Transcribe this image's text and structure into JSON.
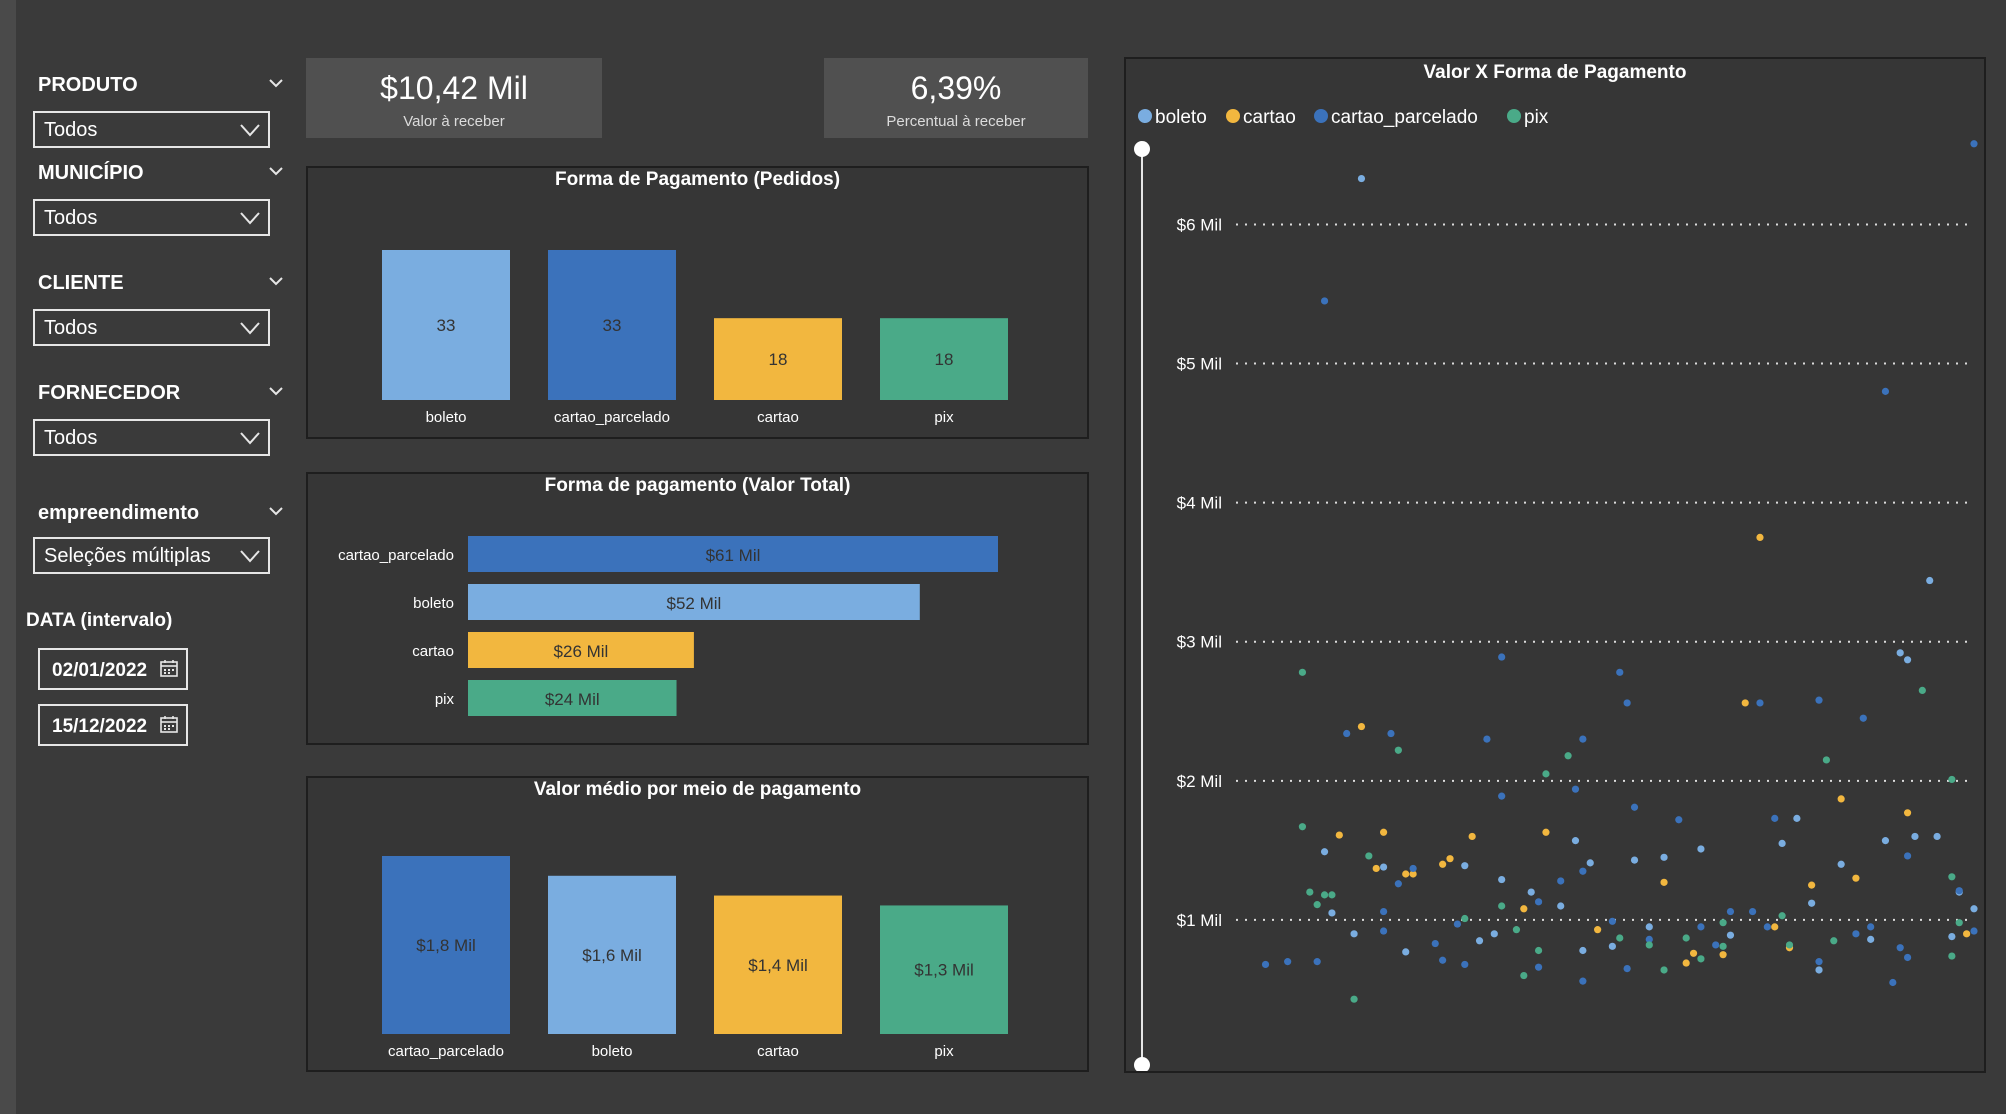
{
  "slicers": [
    {
      "title": "PRODUTO",
      "value": "Todos"
    },
    {
      "title": "MUNICÍPIO",
      "value": "Todos"
    },
    {
      "title": "CLIENTE",
      "value": "Todos"
    },
    {
      "title": "FORNECEDOR",
      "value": "Todos"
    },
    {
      "title": "empreendimento",
      "value": "Seleções múltiplas"
    }
  ],
  "date_filter": {
    "label": "DATA (intervalo)",
    "start": "02/01/2022",
    "end": "15/12/2022"
  },
  "kpis": [
    {
      "value": "$10,42 Mil",
      "label": "Valor à receber"
    },
    {
      "value": "6,39%",
      "label": "Percentual à receber"
    }
  ],
  "colors": {
    "boleto": "#7aade0",
    "cartao_parcelado": "#3b72bb",
    "cartao": "#f2b73f",
    "pix": "#4aaa88"
  },
  "charts": {
    "orders": {
      "title": "Forma de Pagamento (Pedidos)",
      "chart_data": {
        "type": "bar",
        "categories": [
          "boleto",
          "cartao_parcelado",
          "cartao",
          "pix"
        ],
        "values": [
          33,
          33,
          18,
          18
        ],
        "labels": [
          "33",
          "33",
          "18",
          "18"
        ],
        "colors": [
          "#7aade0",
          "#3b72bb",
          "#f2b73f",
          "#4aaa88"
        ]
      }
    },
    "total": {
      "title": "Forma de pagamento (Valor Total)",
      "chart_data": {
        "type": "bar",
        "orientation": "horizontal",
        "categories": [
          "cartao_parcelado",
          "boleto",
          "cartao",
          "pix"
        ],
        "values": [
          61,
          52,
          26,
          24
        ],
        "labels": [
          "$61 Mil",
          "$52 Mil",
          "$26 Mil",
          "$24 Mil"
        ],
        "colors": [
          "#3b72bb",
          "#7aade0",
          "#f2b73f",
          "#4aaa88"
        ]
      }
    },
    "average": {
      "title": "Valor médio por meio de pagamento",
      "chart_data": {
        "type": "bar",
        "categories": [
          "cartao_parcelado",
          "boleto",
          "cartao",
          "pix"
        ],
        "values": [
          1.8,
          1.6,
          1.4,
          1.3
        ],
        "labels": [
          "$1,8 Mil",
          "$1,6 Mil",
          "$1,4 Mil",
          "$1,3 Mil"
        ],
        "colors": [
          "#3b72bb",
          "#7aade0",
          "#f2b73f",
          "#4aaa88"
        ]
      }
    },
    "scatter": {
      "title": "Valor X Forma de Pagamento",
      "chart_data": {
        "type": "scatter",
        "legend": [
          "boleto",
          "cartao",
          "cartao_parcelado",
          "pix"
        ],
        "y_ticks": [
          "$1 Mil",
          "$2 Mil",
          "$3 Mil",
          "$4 Mil",
          "$5 Mil",
          "$6 Mil"
        ],
        "y_tick_values": [
          1000,
          2000,
          3000,
          4000,
          5000,
          6000
        ],
        "ylim": [
          0,
          6600
        ],
        "xlim": [
          0,
          100
        ],
        "grid": true,
        "series": [
          {
            "name": "boleto",
            "points": [
              [
                17,
                6330
              ],
              [
                46,
                1570
              ],
              [
                48,
                1410
              ],
              [
                58,
                1450
              ],
              [
                63,
                1510
              ],
              [
                31,
                1390
              ],
              [
                36,
                1290
              ],
              [
                44,
                1100
              ],
              [
                56,
                950
              ],
              [
                35,
                900
              ],
              [
                20,
                1380
              ],
              [
                74,
                1550
              ],
              [
                76,
                1730
              ],
              [
                79,
                640
              ],
              [
                82,
                1400
              ],
              [
                88,
                1570
              ],
              [
                90,
                2920
              ],
              [
                91,
                2870
              ],
              [
                94,
                3440
              ],
              [
                98,
                1200
              ],
              [
                100,
                1080
              ],
              [
                97,
                880
              ],
              [
                86,
                860
              ],
              [
                92,
                1600
              ],
              [
                95,
                1600
              ],
              [
                12,
                1490
              ],
              [
                13,
                1050
              ],
              [
                16,
                900
              ],
              [
                23,
                770
              ],
              [
                40,
                1200
              ],
              [
                54,
                1430
              ],
              [
                67,
                890
              ],
              [
                78,
                1120
              ],
              [
                47,
                780
              ],
              [
                51,
                810
              ],
              [
                33,
                850
              ]
            ]
          },
          {
            "name": "cartao",
            "points": [
              [
                71,
                3750
              ],
              [
                69,
                2560
              ],
              [
                82,
                1870
              ],
              [
                91,
                1770
              ],
              [
                28,
                1400
              ],
              [
                29,
                1440
              ],
              [
                32,
                1600
              ],
              [
                23,
                1330
              ],
              [
                19,
                1370
              ],
              [
                24,
                1330
              ],
              [
                39,
                1080
              ],
              [
                42,
                1630
              ],
              [
                58,
                1270
              ],
              [
                66,
                750
              ],
              [
                75,
                800
              ],
              [
                78,
                1250
              ],
              [
                61,
                690
              ],
              [
                49,
                930
              ],
              [
                73,
                950
              ],
              [
                84,
                1300
              ],
              [
                99,
                900
              ],
              [
                14,
                1610
              ],
              [
                17,
                2390
              ],
              [
                20,
                1630
              ],
              [
                62,
                760
              ]
            ]
          },
          {
            "name": "cartao_parcelado",
            "points": [
              [
                100,
                6580
              ],
              [
                12,
                5450
              ],
              [
                88,
                4800
              ],
              [
                36,
                2890
              ],
              [
                52,
                2780
              ],
              [
                53,
                2560
              ],
              [
                71,
                2560
              ],
              [
                15,
                2340
              ],
              [
                21,
                2340
              ],
              [
                34,
                2300
              ],
              [
                47,
                2300
              ],
              [
                79,
                2580
              ],
              [
                85,
                2450
              ],
              [
                36,
                1890
              ],
              [
                46,
                1940
              ],
              [
                54,
                1810
              ],
              [
                60,
                1720
              ],
              [
                73,
                1730
              ],
              [
                91,
                1460
              ],
              [
                98,
                1210
              ],
              [
                70,
                1060
              ],
              [
                67,
                1060
              ],
              [
                90,
                800
              ],
              [
                53,
                650
              ],
              [
                84,
                900
              ],
              [
                86,
                950
              ],
              [
                63,
                950
              ],
              [
                72,
                950
              ],
              [
                30,
                970
              ],
              [
                41,
                1130
              ],
              [
                44,
                1280
              ],
              [
                47,
                1350
              ],
              [
                24,
                1370
              ],
              [
                22,
                1260
              ],
              [
                20,
                1060
              ],
              [
                20,
                920
              ],
              [
                27,
                830
              ],
              [
                28,
                710
              ],
              [
                41,
                660
              ],
              [
                51,
                990
              ],
              [
                56,
                860
              ],
              [
                65,
                820
              ],
              [
                79,
                700
              ],
              [
                91,
                730
              ],
              [
                100,
                920
              ],
              [
                102,
                2090
              ],
              [
                11,
                700
              ],
              [
                7,
                700
              ],
              [
                31,
                680
              ],
              [
                47,
                560
              ],
              [
                89,
                550
              ],
              [
                4,
                680
              ]
            ]
          },
          {
            "name": "pix",
            "points": [
              [
                9,
                2780
              ],
              [
                9,
                1670
              ],
              [
                10,
                1200
              ],
              [
                12,
                1180
              ],
              [
                13,
                1180
              ],
              [
                11,
                1110
              ],
              [
                22,
                2220
              ],
              [
                42,
                2050
              ],
              [
                45,
                2180
              ],
              [
                80,
                2150
              ],
              [
                93,
                2650
              ],
              [
                97,
                2010
              ],
              [
                66,
                810
              ],
              [
                61,
                870
              ],
              [
                63,
                720
              ],
              [
                66,
                980
              ],
              [
                74,
                1030
              ],
              [
                75,
                820
              ],
              [
                81,
                850
              ],
              [
                97,
                1310
              ],
              [
                97,
                740
              ],
              [
                98,
                980
              ],
              [
                101,
                730
              ],
              [
                18,
                1460
              ],
              [
                31,
                1010
              ],
              [
                36,
                1100
              ],
              [
                52,
                870
              ],
              [
                56,
                820
              ],
              [
                58,
                640
              ],
              [
                38,
                930
              ],
              [
                41,
                780
              ],
              [
                39,
                600
              ],
              [
                16,
                430
              ]
            ]
          }
        ]
      }
    }
  }
}
